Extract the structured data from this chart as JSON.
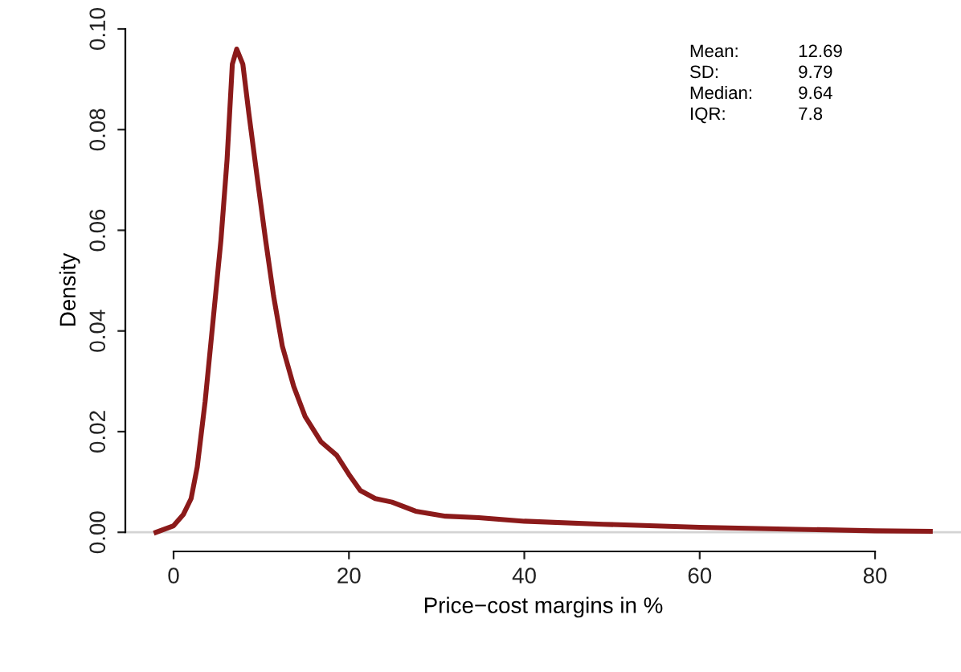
{
  "chart_data": {
    "type": "line",
    "xlabel": "Price−cost margins in %",
    "ylabel": "Density",
    "x": [
      -2,
      0,
      1.1,
      2,
      2.7,
      3.6,
      4.5,
      5.4,
      6.1,
      6.7,
      7.2,
      7.9,
      8.6,
      9.5,
      10.5,
      11.4,
      12.4,
      13.7,
      15,
      16.8,
      18.6,
      20,
      21.3,
      23,
      24.9,
      27.6,
      31,
      34.8,
      40,
      49,
      60,
      71,
      80,
      86.3
    ],
    "series": [
      {
        "color": "#8b1a1a",
        "values": [
          0,
          0.0013,
          0.0035,
          0.0067,
          0.013,
          0.026,
          0.042,
          0.058,
          0.074,
          0.093,
          0.096,
          0.093,
          0.083,
          0.071,
          0.058,
          0.047,
          0.037,
          0.029,
          0.023,
          0.018,
          0.0153,
          0.0115,
          0.0083,
          0.0067,
          0.006,
          0.0042,
          0.0032,
          0.0029,
          0.0022,
          0.0016,
          0.001,
          0.0006,
          0.0003,
          0.0002
        ]
      }
    ],
    "xlim": [
      -5.5,
      89.8
    ],
    "ylim": [
      -0.0038,
      0.1
    ],
    "xticks": [
      0,
      20,
      40,
      60,
      80
    ],
    "yticks": [
      {
        "value": 0,
        "label": "0.00"
      },
      {
        "value": 0.02,
        "label": "0.02"
      },
      {
        "value": 0.04,
        "label": "0.04"
      },
      {
        "value": 0.06,
        "label": "0.06"
      },
      {
        "value": 0.08,
        "label": "0.08"
      },
      {
        "value": 0.1,
        "label": "0.10"
      }
    ],
    "ref_lines": [
      {
        "axis": "y",
        "value": 0,
        "color": "#d3d3d3"
      }
    ],
    "annotations": [
      "Mean:",
      "12.69",
      "SD:",
      "9.79",
      "Median:",
      "9.64",
      "IQR:",
      "7.8"
    ],
    "grid": false,
    "legend": false,
    "marker": "none",
    "line_style": "solid"
  }
}
